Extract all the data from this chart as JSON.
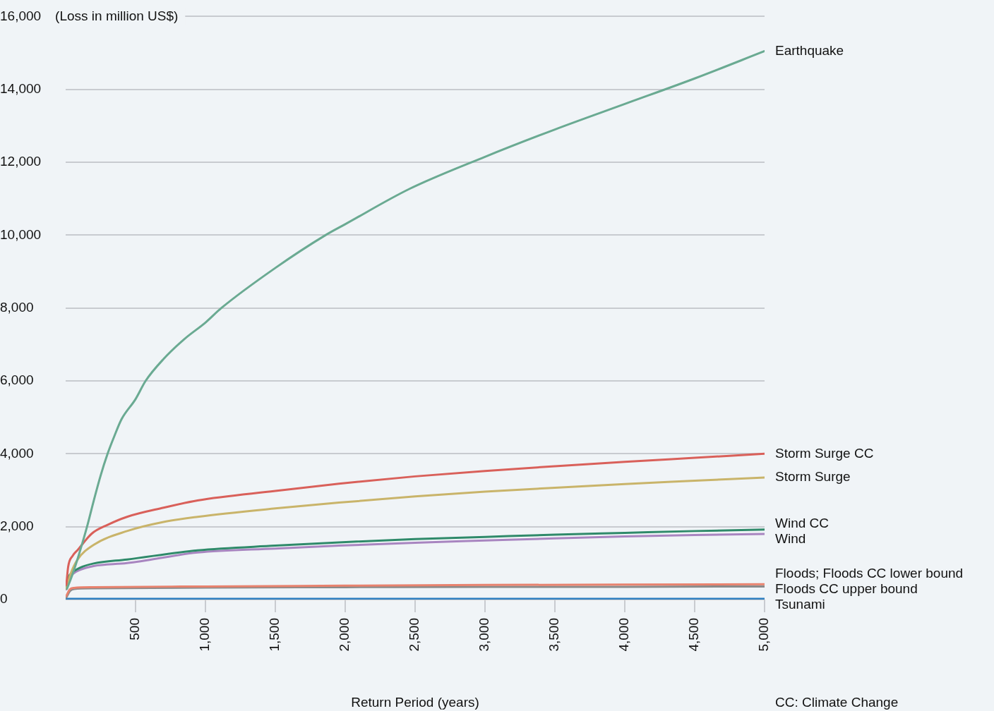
{
  "chart_data": {
    "type": "line",
    "xlabel": "Return Period (years)",
    "ylabel": "(Loss in million US$)",
    "annotations": [
      "CC: Climate Change"
    ],
    "xlim": [
      0,
      5000
    ],
    "xticks": [
      {
        "value": 500,
        "label": "500"
      },
      {
        "value": 1000,
        "label": "1,000"
      },
      {
        "value": 1500,
        "label": "1,500"
      },
      {
        "value": 2000,
        "label": "2,000"
      },
      {
        "value": 2500,
        "label": "2,500"
      },
      {
        "value": 3000,
        "label": "3,000"
      },
      {
        "value": 3500,
        "label": "3,500"
      },
      {
        "value": 4000,
        "label": "4,000"
      },
      {
        "value": 4500,
        "label": "4,500"
      },
      {
        "value": 5000,
        "label": "5,000"
      }
    ],
    "ylim": [
      0,
      16000
    ],
    "yticks": [
      {
        "value": 0,
        "label": "0"
      },
      {
        "value": 2000,
        "label": "2,000"
      },
      {
        "value": 4000,
        "label": "4,000"
      },
      {
        "value": 6000,
        "label": "6,000"
      },
      {
        "value": 8000,
        "label": "8,000"
      },
      {
        "value": 10000,
        "label": "10,000"
      },
      {
        "value": 12000,
        "label": "12,000"
      },
      {
        "value": 14000,
        "label": "14,000"
      },
      {
        "value": 16000,
        "label": "16,000"
      }
    ],
    "grid": "y",
    "legend": false,
    "marker": "none",
    "line_style": "solid",
    "series": [
      {
        "name": "Earthquake",
        "color": "#6aaa92",
        "x": [
          10,
          50,
          100,
          153,
          200,
          250,
          300,
          350,
          400,
          500,
          572,
          700,
          850,
          1000,
          1114,
          1500,
          1859,
          2000,
          2460,
          3000,
          3500,
          4000,
          4500,
          5000
        ],
        "values": [
          300,
          700,
          1300,
          2000,
          2700,
          3400,
          4000,
          4500,
          4950,
          5500,
          6000,
          6600,
          7150,
          7600,
          8000,
          9100,
          10000,
          10300,
          11270,
          12150,
          12900,
          13600,
          14300,
          15050
        ]
      },
      {
        "name": "Storm Surge CC",
        "color": "#d9605a",
        "x": [
          5,
          18,
          50,
          86,
          187,
          300,
          439,
          700,
          944,
          1500,
          1955,
          2500,
          3000,
          3500,
          4000,
          4500,
          5000
        ],
        "values": [
          400,
          900,
          1200,
          1360,
          1810,
          2050,
          2270,
          2520,
          2720,
          2980,
          3180,
          3380,
          3530,
          3660,
          3780,
          3890,
          4000
        ]
      },
      {
        "name": "Storm Surge",
        "color": "#c9b46a",
        "x": [
          5,
          35,
          86,
          200,
          439,
          700,
          944,
          1500,
          1955,
          2500,
          3000,
          3500,
          4000,
          4500,
          5000
        ],
        "values": [
          300,
          700,
          1100,
          1500,
          1880,
          2130,
          2270,
          2500,
          2660,
          2830,
          2960,
          3070,
          3170,
          3260,
          3350
        ]
      },
      {
        "name": "Wind CC",
        "color": "#2f8a6a",
        "x": [
          5,
          18,
          50,
          100,
          200,
          439,
          944,
          1500,
          1955,
          2500,
          3000,
          3500,
          4000,
          4500,
          5000
        ],
        "values": [
          300,
          580,
          750,
          870,
          990,
          1100,
          1350,
          1480,
          1570,
          1660,
          1720,
          1780,
          1830,
          1880,
          1920
        ]
      },
      {
        "name": "Wind",
        "color": "#a885c0",
        "x": [
          5,
          18,
          50,
          100,
          200,
          439,
          944,
          1500,
          1955,
          2500,
          3000,
          3500,
          4000,
          4500,
          5000
        ],
        "values": [
          280,
          540,
          700,
          810,
          920,
          1000,
          1290,
          1400,
          1480,
          1560,
          1620,
          1680,
          1730,
          1770,
          1800
        ]
      },
      {
        "name": "Floods; Floods CC lower bound",
        "color": "#e8826e",
        "x": [
          5,
          30,
          60,
          200,
          1000,
          2000,
          3000,
          4000,
          5000
        ],
        "values": [
          100,
          280,
          320,
          340,
          360,
          380,
          400,
          410,
          420
        ]
      },
      {
        "name": "Floods CC upper bound",
        "color": "#8a8a8a",
        "x": [
          5,
          30,
          60,
          200,
          1000,
          2000,
          3000,
          4000,
          5000
        ],
        "values": [
          60,
          230,
          290,
          310,
          330,
          340,
          350,
          350,
          360
        ]
      },
      {
        "name": "Tsunami",
        "color": "#2f7fc0",
        "x": [
          5,
          5000
        ],
        "values": [
          20,
          20
        ]
      }
    ]
  }
}
